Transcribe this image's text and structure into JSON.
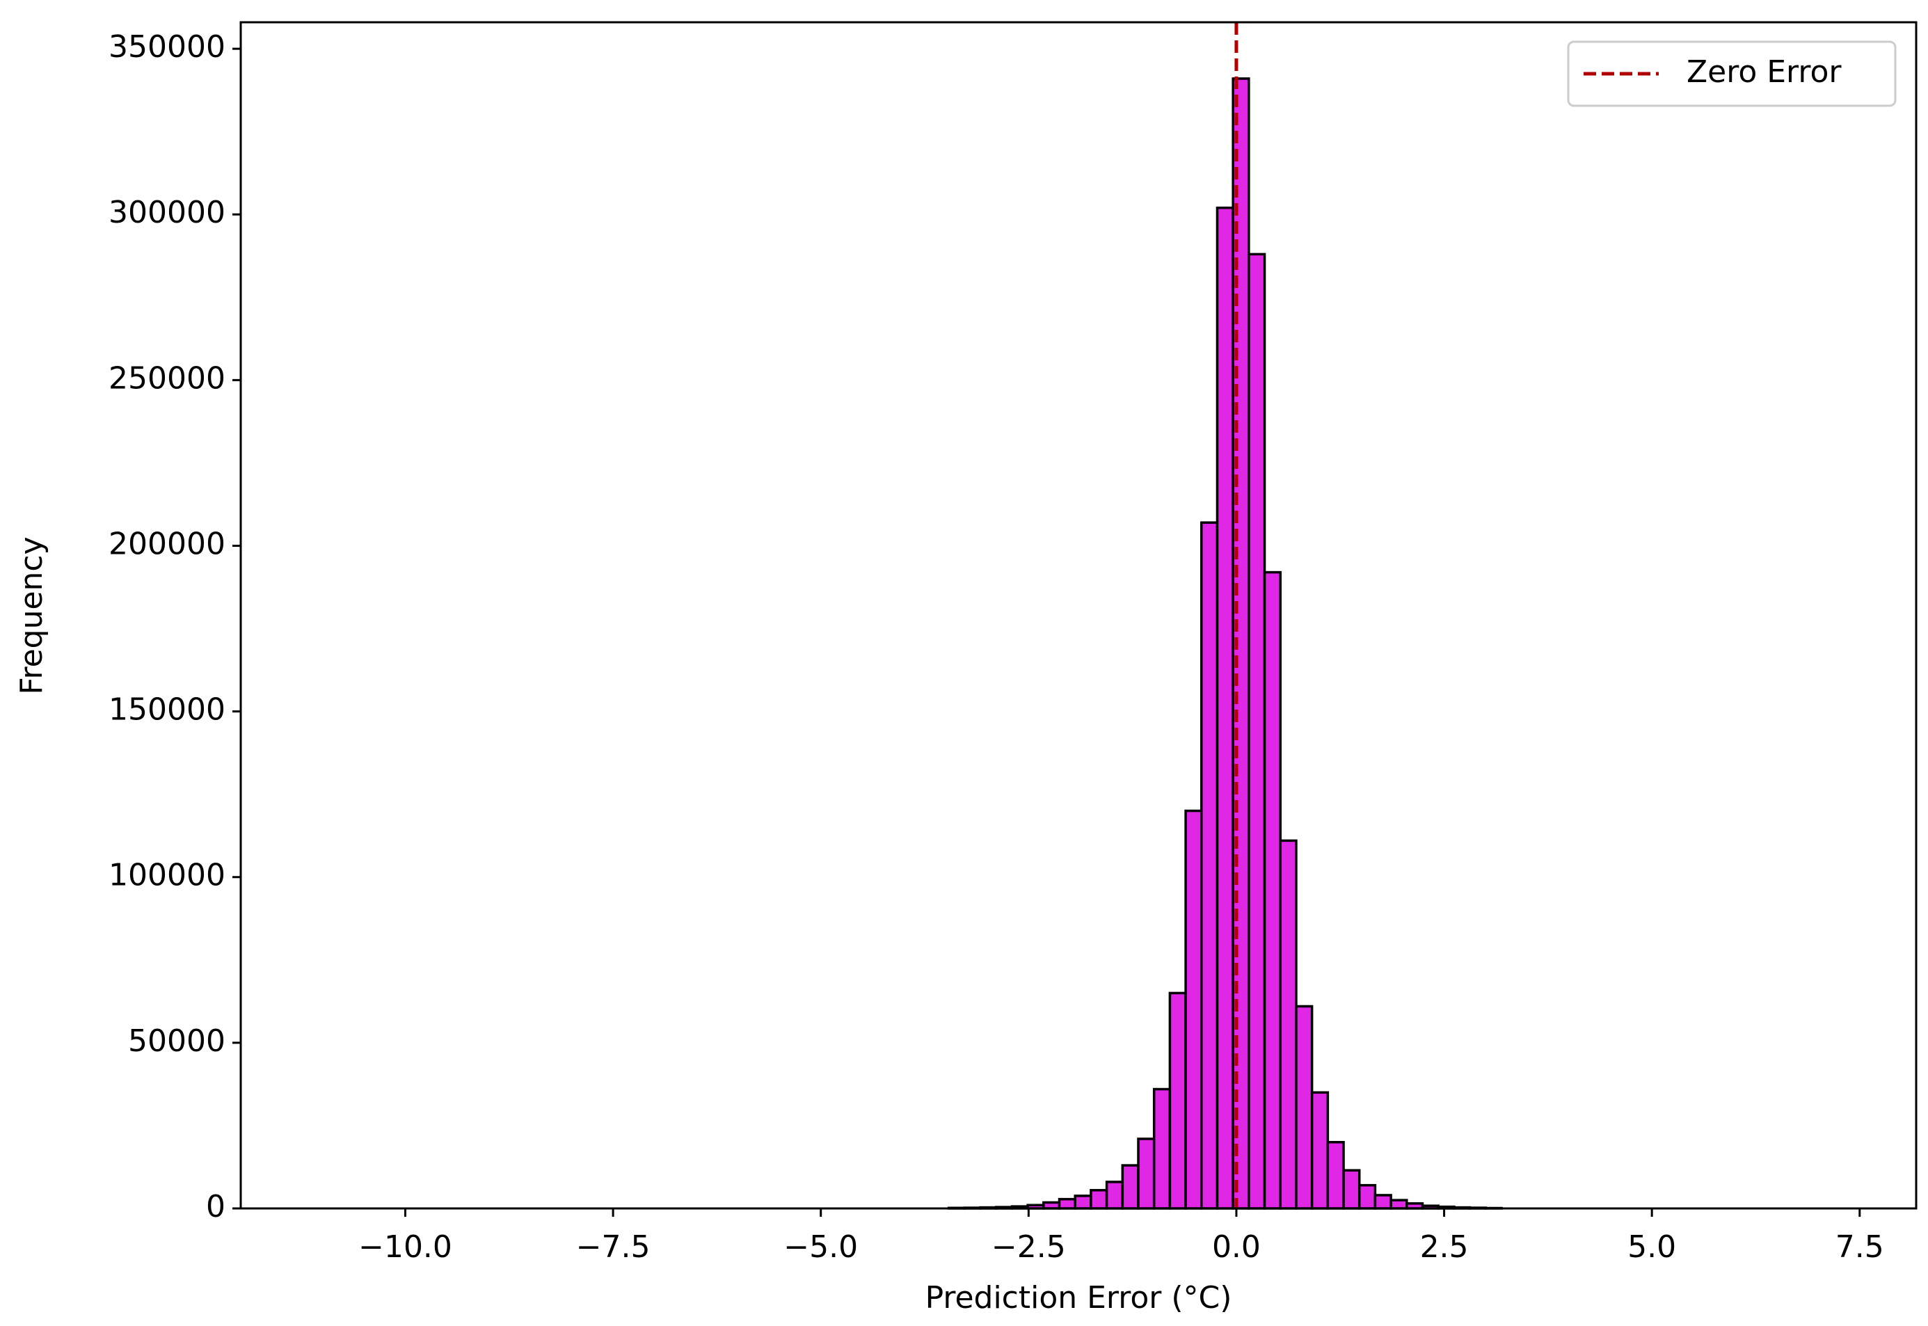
{
  "chart_data": {
    "type": "histogram",
    "x_label": "Prediction Error (°C)",
    "y_label": "Frequency",
    "bins": [
      -11.06,
      -10.87,
      -10.68,
      -10.49,
      -10.3,
      -10.11,
      -9.92,
      -9.73,
      -9.54,
      -9.35,
      -9.16,
      -8.97,
      -8.78,
      -8.59,
      -8.4,
      -8.21,
      -8.02,
      -7.83,
      -7.64,
      -7.45,
      -7.26,
      -7.07,
      -6.88,
      -6.69,
      -6.5,
      -6.31,
      -6.12,
      -5.93,
      -5.74,
      -5.55,
      -5.36,
      -5.17,
      -4.98,
      -4.79,
      -4.6,
      -4.41,
      -4.22,
      -4.03,
      -3.84,
      -3.65,
      -3.46,
      -3.27,
      -3.08,
      -2.89,
      -2.7,
      -2.51,
      -2.32,
      -2.13,
      -1.94,
      -1.75,
      -1.56,
      -1.37,
      -1.18,
      -0.99,
      -0.8,
      -0.61,
      -0.42,
      -0.23,
      -0.04,
      0.15,
      0.34,
      0.53,
      0.72,
      0.91,
      1.1,
      1.29,
      1.48,
      1.67,
      1.86,
      2.05,
      2.24,
      2.43,
      2.62,
      2.81,
      3.0,
      3.19,
      3.38,
      3.57,
      3.76,
      3.95,
      4.14,
      4.33,
      4.52,
      4.71,
      4.9,
      5.09,
      5.28,
      5.47,
      5.66,
      5.85,
      6.04,
      6.23,
      6.42,
      6.61,
      6.8,
      6.99,
      7.18,
      7.37
    ],
    "values": [
      0,
      0,
      0,
      0,
      0,
      0,
      0,
      0,
      0,
      0,
      0,
      0,
      0,
      0,
      0,
      0,
      0,
      0,
      0,
      0,
      0,
      0,
      0,
      0,
      0,
      0,
      0,
      0,
      0,
      0,
      0,
      0,
      0,
      0,
      0,
      0,
      0,
      0,
      0,
      0,
      150,
      200,
      300,
      400,
      600,
      1000,
      1800,
      2800,
      3800,
      5500,
      8000,
      13000,
      21000,
      36000,
      65000,
      120000,
      207000,
      302000,
      341000,
      288000,
      192000,
      111000,
      61000,
      35000,
      20000,
      11500,
      7000,
      4000,
      2500,
      1500,
      800,
      500,
      300,
      200,
      100,
      0,
      0,
      0,
      0,
      0,
      0,
      0,
      0,
      0,
      0,
      0,
      0,
      0,
      0,
      0,
      0,
      0,
      0,
      0,
      0,
      0,
      0
    ],
    "color": "#e027e6",
    "edge_color": "#000000",
    "reference_line": {
      "name": "Zero Error",
      "x": 0,
      "color": "#b00000"
    },
    "xlim": [
      -11.98,
      8.18
    ],
    "xticks": [
      {
        "value": -10,
        "label": "−10.0"
      },
      {
        "value": -7.5,
        "label": "−7.5"
      },
      {
        "value": -5,
        "label": "−5.0"
      },
      {
        "value": -2.5,
        "label": "−2.5"
      },
      {
        "value": 0,
        "label": "0.0"
      },
      {
        "value": 2.5,
        "label": "2.5"
      },
      {
        "value": 5,
        "label": "5.0"
      },
      {
        "value": 7.5,
        "label": "7.5"
      }
    ],
    "ylim": [
      0,
      358000
    ],
    "yticks": [
      0,
      50000,
      100000,
      150000,
      200000,
      250000,
      300000,
      350000
    ],
    "legend": "upper right"
  }
}
